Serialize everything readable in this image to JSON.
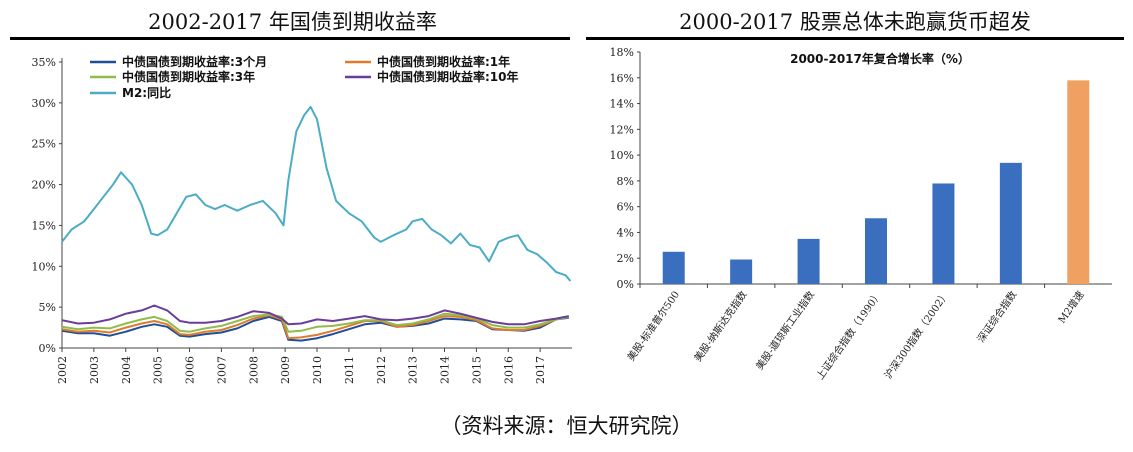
{
  "left_panel": {
    "title": "2002-2017 年国债到期收益率"
  },
  "right_panel": {
    "title": "2000-2017 股票总体未跑赢货币超发"
  },
  "source": "（资料来源：恒大研究院）",
  "colors": {
    "m2": "#4bacc6",
    "y3m": "#1f4e9a",
    "y1": "#e07b2a",
    "y3": "#8fbc4a",
    "y10": "#6a3d9a",
    "bar_blue": "#3a6fc0",
    "bar_orange": "#f0a060"
  },
  "chart_data": [
    {
      "type": "line",
      "title": "",
      "xlabel": "",
      "ylabel": "",
      "x_ticks": [
        "2002",
        "2003",
        "2004",
        "2005",
        "2006",
        "2007",
        "2008",
        "2009",
        "2010",
        "2011",
        "2012",
        "2013",
        "2014",
        "2015",
        "2016",
        "2017"
      ],
      "y_ticks": [
        "0%",
        "5%",
        "10%",
        "15%",
        "20%",
        "25%",
        "30%",
        "35%"
      ],
      "xlim": [
        2002.0,
        2018.0
      ],
      "ylim": [
        0,
        35
      ],
      "legend_position": "top",
      "series": [
        {
          "name": "中债国债到期收益率:3个月",
          "color_key": "y3m",
          "x": [
            2002.0,
            2002.5,
            2003.0,
            2003.5,
            2004.0,
            2004.5,
            2004.9,
            2005.3,
            2005.7,
            2006.0,
            2006.5,
            2007.0,
            2007.5,
            2008.0,
            2008.5,
            2008.9,
            2009.1,
            2009.5,
            2010.0,
            2010.5,
            2011.0,
            2011.5,
            2012.0,
            2012.5,
            2013.0,
            2013.5,
            2014.0,
            2014.5,
            2015.0,
            2015.5,
            2016.0,
            2016.5,
            2017.0,
            2017.5,
            2017.9
          ],
          "y": [
            2.1,
            1.8,
            1.8,
            1.5,
            2.0,
            2.6,
            2.9,
            2.6,
            1.5,
            1.4,
            1.7,
            1.9,
            2.4,
            3.3,
            3.8,
            3.3,
            1.0,
            0.9,
            1.2,
            1.7,
            2.3,
            2.9,
            3.1,
            2.6,
            2.7,
            3.0,
            3.6,
            3.5,
            3.3,
            2.3,
            2.2,
            2.1,
            2.5,
            3.5,
            3.7
          ]
        },
        {
          "name": "中债国债到期收益率:1年",
          "color_key": "y1",
          "x": [
            2002.0,
            2002.5,
            2003.0,
            2003.5,
            2004.0,
            2004.5,
            2004.9,
            2005.3,
            2005.7,
            2006.0,
            2006.5,
            2007.0,
            2007.5,
            2008.0,
            2008.5,
            2008.9,
            2009.1,
            2009.5,
            2010.0,
            2010.5,
            2011.0,
            2011.5,
            2012.0,
            2012.5,
            2013.0,
            2013.5,
            2014.0,
            2014.5,
            2015.0,
            2015.5,
            2016.0,
            2016.5,
            2017.0,
            2017.5,
            2017.9
          ],
          "y": [
            2.3,
            2.0,
            2.1,
            1.9,
            2.5,
            3.0,
            3.3,
            2.9,
            1.7,
            1.6,
            2.0,
            2.2,
            2.8,
            3.6,
            4.0,
            3.5,
            1.2,
            1.3,
            1.6,
            2.1,
            2.7,
            3.3,
            3.3,
            2.6,
            2.8,
            3.3,
            3.9,
            3.8,
            3.4,
            2.4,
            2.2,
            2.2,
            2.7,
            3.5,
            3.8
          ]
        },
        {
          "name": "中债国债到期收益率:3年",
          "color_key": "y3",
          "x": [
            2002.0,
            2002.5,
            2003.0,
            2003.5,
            2004.0,
            2004.5,
            2004.9,
            2005.3,
            2005.7,
            2006.0,
            2006.5,
            2007.0,
            2007.5,
            2008.0,
            2008.5,
            2008.9,
            2009.1,
            2009.5,
            2010.0,
            2010.5,
            2011.0,
            2011.5,
            2012.0,
            2012.5,
            2013.0,
            2013.5,
            2014.0,
            2014.5,
            2015.0,
            2015.5,
            2016.0,
            2016.5,
            2017.0,
            2017.5,
            2017.9
          ],
          "y": [
            2.6,
            2.3,
            2.5,
            2.4,
            3.0,
            3.5,
            3.8,
            3.3,
            2.1,
            2.0,
            2.4,
            2.7,
            3.3,
            3.9,
            4.1,
            3.8,
            2.0,
            2.1,
            2.6,
            2.7,
            3.0,
            3.4,
            3.4,
            2.8,
            3.0,
            3.5,
            4.2,
            4.0,
            3.6,
            2.8,
            2.5,
            2.5,
            2.9,
            3.5,
            3.8
          ]
        },
        {
          "name": "中债国债到期收益率:10年",
          "color_key": "y10",
          "x": [
            2002.0,
            2002.5,
            2003.0,
            2003.5,
            2004.0,
            2004.5,
            2004.9,
            2005.3,
            2005.7,
            2006.0,
            2006.5,
            2007.0,
            2007.5,
            2008.0,
            2008.5,
            2008.9,
            2009.1,
            2009.5,
            2010.0,
            2010.5,
            2011.0,
            2011.5,
            2012.0,
            2012.5,
            2013.0,
            2013.5,
            2014.0,
            2014.5,
            2015.0,
            2015.5,
            2016.0,
            2016.5,
            2017.0,
            2017.5,
            2017.9
          ],
          "y": [
            3.4,
            3.0,
            3.1,
            3.5,
            4.2,
            4.6,
            5.2,
            4.6,
            3.3,
            3.1,
            3.1,
            3.3,
            3.8,
            4.5,
            4.3,
            3.6,
            2.9,
            3.0,
            3.5,
            3.3,
            3.6,
            3.9,
            3.5,
            3.4,
            3.6,
            3.9,
            4.6,
            4.2,
            3.7,
            3.2,
            2.9,
            2.9,
            3.3,
            3.6,
            3.9
          ]
        },
        {
          "name": "M2:同比",
          "color_key": "m2",
          "x": [
            2002.0,
            2002.3,
            2002.7,
            2003.0,
            2003.3,
            2003.6,
            2003.85,
            2004.2,
            2004.5,
            2004.8,
            2005.0,
            2005.3,
            2005.6,
            2005.9,
            2006.2,
            2006.5,
            2006.8,
            2007.1,
            2007.5,
            2007.9,
            2008.3,
            2008.7,
            2008.95,
            2009.1,
            2009.35,
            2009.6,
            2009.8,
            2010.0,
            2010.3,
            2010.6,
            2011.0,
            2011.4,
            2011.8,
            2012.0,
            2012.4,
            2012.8,
            2013.0,
            2013.3,
            2013.6,
            2013.9,
            2014.2,
            2014.5,
            2014.8,
            2015.1,
            2015.4,
            2015.7,
            2016.0,
            2016.3,
            2016.6,
            2016.9,
            2017.2,
            2017.5,
            2017.8,
            2017.95
          ],
          "y": [
            13.0,
            14.5,
            15.5,
            17.0,
            18.5,
            20.0,
            21.5,
            20.0,
            17.5,
            14.0,
            13.8,
            14.5,
            16.5,
            18.5,
            18.8,
            17.5,
            17.0,
            17.5,
            16.8,
            17.5,
            18.0,
            16.5,
            15.0,
            20.5,
            26.5,
            28.5,
            29.5,
            28.0,
            22.0,
            18.0,
            16.5,
            15.5,
            13.5,
            13.0,
            13.8,
            14.5,
            15.5,
            15.8,
            14.5,
            13.8,
            12.8,
            14.0,
            12.6,
            12.3,
            10.6,
            13.0,
            13.5,
            13.8,
            12.0,
            11.5,
            10.5,
            9.3,
            8.9,
            8.2
          ]
        }
      ]
    },
    {
      "type": "bar",
      "title": "2000-2017年复合增长率（%）",
      "xlabel": "",
      "ylabel": "",
      "y_ticks": [
        "0%",
        "2%",
        "4%",
        "6%",
        "8%",
        "10%",
        "12%",
        "14%",
        "16%",
        "18%"
      ],
      "ylim": [
        0,
        18
      ],
      "categories": [
        "美股-标准普尔500",
        "美股-纳斯达克指数",
        "美股-道琼斯工业指数",
        "上证综合指数（1990）",
        "沪深300指数（2002）",
        "深证综合指数",
        "M2增速"
      ],
      "values": [
        2.5,
        1.9,
        3.5,
        5.1,
        7.8,
        9.4,
        15.8
      ],
      "bar_color_keys": [
        "bar_blue",
        "bar_blue",
        "bar_blue",
        "bar_blue",
        "bar_blue",
        "bar_blue",
        "bar_orange"
      ]
    }
  ]
}
